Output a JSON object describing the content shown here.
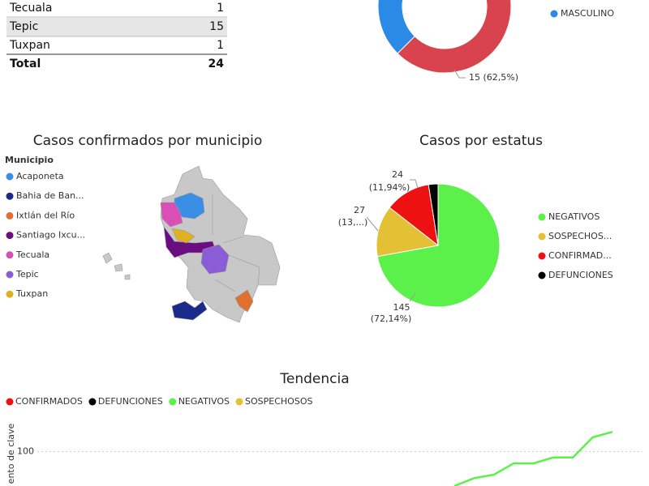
{
  "table": {
    "rows": [
      {
        "name": "Tecuala",
        "value": 1
      },
      {
        "name": "Tepic",
        "value": 15
      },
      {
        "name": "Tuxpan",
        "value": 1
      }
    ],
    "total": {
      "name": "Total",
      "value": 24
    }
  },
  "chart_data": [
    {
      "type": "donut",
      "categories": [
        null,
        "MASCULINO"
      ],
      "values": [
        15,
        9
      ],
      "value_labels": [
        "15 (62,5%)",
        null
      ],
      "colors": [
        "#d9434e",
        "#2b8ae6"
      ]
    },
    {
      "type": "map",
      "title": "Casos confirmados por municipio",
      "legend_title": "Municipio",
      "categories": [
        "Acaponeta",
        "Bahia de Ban...",
        "Ixtlán del Río",
        "Santiago Ixcu...",
        "Tecuala",
        "Tepic",
        "Tuxpan"
      ],
      "colors": [
        "#3a8ee6",
        "#1a2a8a",
        "#e07030",
        "#6a0d83",
        "#d94fb5",
        "#8a5cd6",
        "#e0b020"
      ]
    },
    {
      "type": "pie",
      "title": "Casos por estatus",
      "categories": [
        "NEGATIVOS",
        "SOSPECHOS...",
        "CONFIRMAD...",
        "DEFUNCIONES"
      ],
      "values": [
        145,
        27,
        24,
        5
      ],
      "value_labels": [
        "145",
        "27",
        "24",
        null
      ],
      "percent_labels": [
        "(72,14%)",
        "(13,...)",
        "(11,94%)",
        null
      ],
      "colors": [
        "#5cf04a",
        "#e3c034",
        "#ee1111",
        "#000000"
      ]
    },
    {
      "type": "line",
      "title": "Tendencia",
      "y_label": "ento de clave",
      "categories": [
        null,
        null,
        null,
        null,
        null,
        null,
        null,
        null,
        null
      ],
      "ylim": [
        30,
        170
      ],
      "yticks": [
        100
      ],
      "series": [
        {
          "name": "CONFIRMADOS",
          "color": "#ee1111",
          "values": [
            null,
            null,
            null,
            null,
            null,
            null,
            null,
            null,
            null
          ]
        },
        {
          "name": "DEFUNCIONES",
          "color": "#000000",
          "values": [
            null,
            null,
            null,
            null,
            null,
            null,
            null,
            null,
            null
          ]
        },
        {
          "name": "NEGATIVOS",
          "color": "#5cf04a",
          "values": [
            30,
            46,
            53,
            76,
            76,
            88,
            88,
            129,
            140
          ]
        },
        {
          "name": "SOSPECHOSOS",
          "color": "#e3c034",
          "values": [
            null,
            null,
            null,
            null,
            null,
            null,
            null,
            null,
            null
          ]
        }
      ]
    }
  ]
}
